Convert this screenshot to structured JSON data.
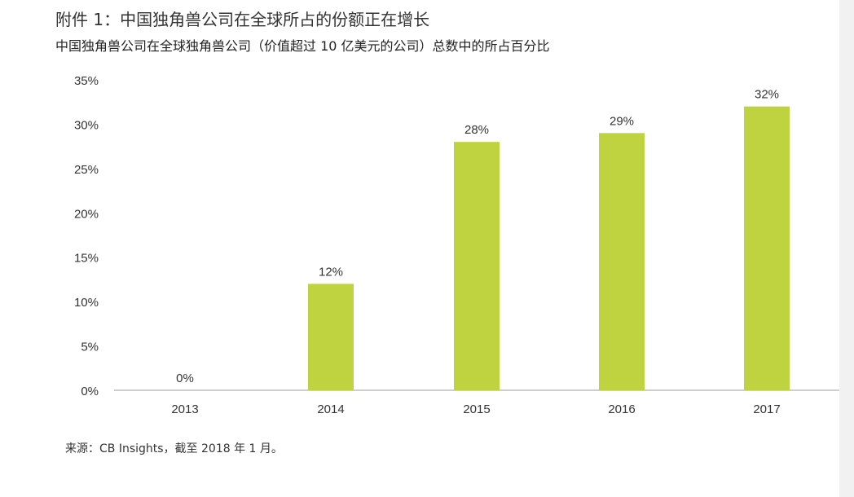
{
  "title": "附件 1：中国独角兽公司在全球所占的份额正在增长",
  "subtitle": "中国独角兽公司在全球独角兽公司（价值超过 10 亿美元的公司）总数中的所占百分比",
  "source": "来源：CB Insights，截至 2018 年 1 月。",
  "colors": {
    "bar": "#BFD340",
    "axis": "#bdbdbd",
    "text": "#333333"
  },
  "chart_data": {
    "type": "bar",
    "categories": [
      "2013",
      "2014",
      "2015",
      "2016",
      "2017"
    ],
    "values": [
      0,
      12,
      28,
      29,
      32
    ],
    "data_labels": [
      "0%",
      "12%",
      "28%",
      "29%",
      "32%"
    ],
    "title": "附件 1：中国独角兽公司在全球所占的份额正在增长",
    "subtitle": "中国独角兽公司在全球独角兽公司（价值超过 10 亿美元的公司）总数中的所占百分比",
    "ylim": [
      0,
      35
    ],
    "yticks": [
      0,
      5,
      10,
      15,
      20,
      25,
      30,
      35
    ],
    "ytick_labels": [
      "0%",
      "5%",
      "10%",
      "15%",
      "20%",
      "25%",
      "30%",
      "35%"
    ],
    "grid": false,
    "legend": "none"
  }
}
